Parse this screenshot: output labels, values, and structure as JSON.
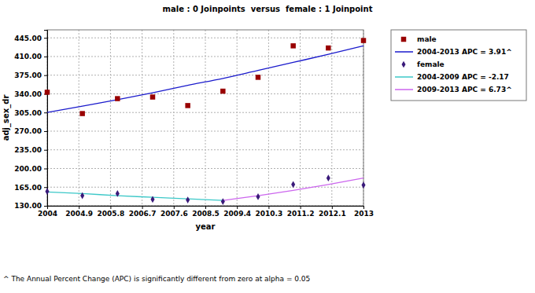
{
  "chart_data": {
    "type": "scatter",
    "title": "male : 0 Joinpoints  versus  female : 1 Joinpoint",
    "x_label": "year",
    "y_label": "adj_sex_dr",
    "footnote": "^ The Annual Percent Change (APC) is significantly different from zero at alpha = 0.05",
    "x": [
      2004,
      2005,
      2006,
      2007,
      2008,
      2009,
      2010,
      2011,
      2012,
      2013
    ],
    "xlim": [
      2004,
      2013
    ],
    "xticks": [
      2004,
      2004.9,
      2005.8,
      2006.7,
      2007.6,
      2008.5,
      2009.4,
      2010.3,
      2011.2,
      2012.1,
      2013
    ],
    "ylim": [
      130,
      460
    ],
    "yticks": [
      {
        "value": 130,
        "label": "130.00"
      },
      {
        "value": 165,
        "label": "165.00"
      },
      {
        "value": 200,
        "label": "200.00"
      },
      {
        "value": 235,
        "label": "235.00"
      },
      {
        "value": 270,
        "label": "270.00"
      },
      {
        "value": 305,
        "label": "305.00"
      },
      {
        "value": 340,
        "label": "340.00"
      },
      {
        "value": 375,
        "label": "375.00"
      },
      {
        "value": 410,
        "label": "410.00"
      },
      {
        "value": 445,
        "label": "445.00"
      }
    ],
    "grid": true,
    "legend": "right",
    "series": [
      {
        "name": "male",
        "type": "scatter",
        "marker": "square",
        "color": "#990000",
        "values": [
          343,
          303,
          331,
          334,
          318,
          345,
          371,
          430,
          426,
          440
        ]
      },
      {
        "name": "2004-2013 APC = 3.91^",
        "type": "line",
        "line_style": "solid",
        "color": "#1a1acc",
        "values": [
          305,
          317,
          329,
          342,
          356,
          369,
          384,
          399,
          414,
          430
        ]
      },
      {
        "name": "female",
        "type": "scatter",
        "marker": "diamond",
        "color": "#3a1a7a",
        "values": [
          157,
          149,
          153,
          142,
          141,
          138,
          147,
          170,
          182,
          169
        ]
      },
      {
        "name": "2004-2009 APC = -2.17",
        "type": "line",
        "line_style": "solid",
        "color": "#3cc8c8",
        "values": [
          156,
          153,
          149,
          146,
          143,
          140,
          null,
          null,
          null,
          null
        ]
      },
      {
        "name": "2009-2013 APC = 6.73^",
        "type": "line",
        "line_style": "solid",
        "color": "#cc66ee",
        "values": [
          null,
          null,
          null,
          null,
          null,
          140,
          149,
          159,
          170,
          182
        ]
      }
    ]
  }
}
